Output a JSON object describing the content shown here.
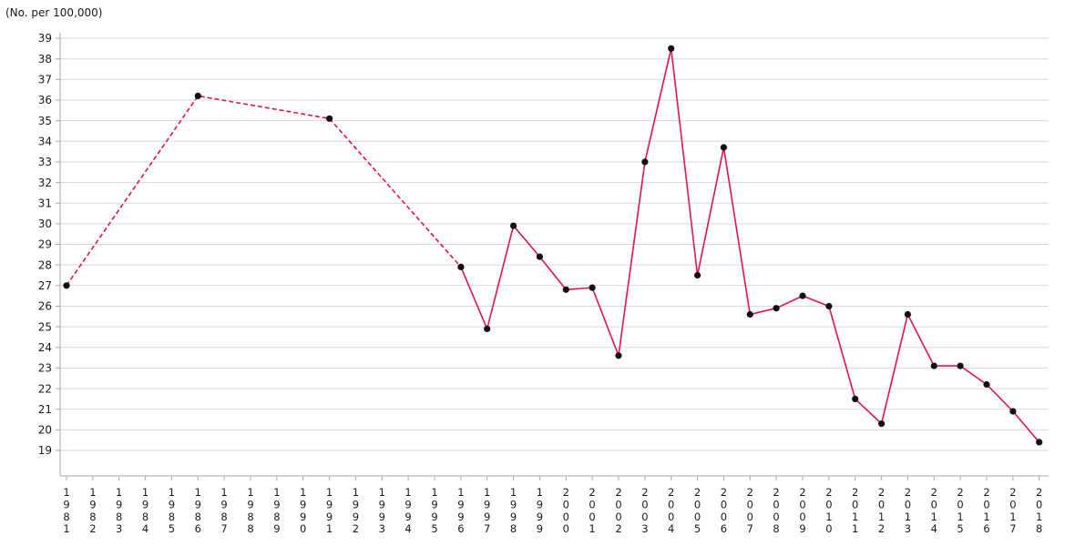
{
  "chart_data": {
    "type": "line",
    "title": "(No. per 100,000)",
    "xlabel": "",
    "ylabel": "(No. per 100,000)",
    "legend": false,
    "grid": true,
    "ylim": [
      19,
      39
    ],
    "y_ticks": [
      39,
      38,
      37,
      36,
      35,
      34,
      33,
      32,
      31,
      30,
      29,
      28,
      27,
      26,
      25,
      24,
      23,
      22,
      21,
      20,
      19
    ],
    "x_categories": [
      "1981",
      "1982",
      "1983",
      "1984",
      "1985",
      "1986",
      "1987",
      "1988",
      "1989",
      "1990",
      "1991",
      "1992",
      "1993",
      "1994",
      "1995",
      "1996",
      "1997",
      "1998",
      "1999",
      "2000",
      "2001",
      "2002",
      "2003",
      "2004",
      "2005",
      "2006",
      "2007",
      "2008",
      "2009",
      "2010",
      "2011",
      "2012",
      "2013",
      "2014",
      "2015",
      "2016",
      "2017",
      "2018"
    ],
    "series": [
      {
        "name": "rate-per-100000",
        "points": [
          [
            1981,
            27.0
          ],
          [
            1986,
            36.2
          ],
          [
            1991,
            35.1
          ],
          [
            1996,
            27.9
          ],
          [
            1997,
            24.9
          ],
          [
            1998,
            29.9
          ],
          [
            1999,
            28.4
          ],
          [
            2000,
            26.8
          ],
          [
            2001,
            26.9
          ],
          [
            2002,
            23.6
          ],
          [
            2003,
            33.0
          ],
          [
            2004,
            38.5
          ],
          [
            2005,
            27.5
          ],
          [
            2006,
            33.7
          ],
          [
            2007,
            25.6
          ],
          [
            2008,
            25.9
          ],
          [
            2009,
            26.5
          ],
          [
            2010,
            26.0
          ],
          [
            2011,
            21.5
          ],
          [
            2012,
            20.3
          ],
          [
            2013,
            25.6
          ],
          [
            2014,
            23.1
          ],
          [
            2015,
            23.1
          ],
          [
            2016,
            22.2
          ],
          [
            2017,
            20.9
          ],
          [
            2018,
            19.4
          ]
        ],
        "dashed_through_year": 1996,
        "line_style_note": "dashed between 5-year points 1981-1996, solid annual from 1996"
      }
    ],
    "style": {
      "line_color": "#e1134e",
      "marker_color": "#111111",
      "grid_color": "#d9d9d9",
      "axis_color": "#a9a9a9",
      "text_color": "#1a1a1a"
    }
  }
}
